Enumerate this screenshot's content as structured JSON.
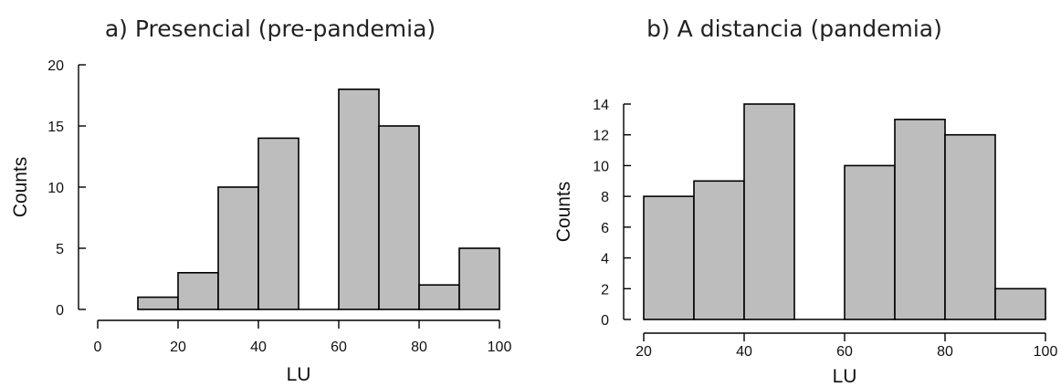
{
  "chart_data": [
    {
      "type": "bar",
      "title": "a) Presencial (pre-pandemia)",
      "xlabel": "LU",
      "ylabel": "Counts",
      "bin_edges": [
        10,
        20,
        30,
        40,
        50,
        60,
        70,
        80,
        90,
        100
      ],
      "values": [
        1,
        3,
        10,
        14,
        0,
        18,
        15,
        2,
        5
      ],
      "xlim": [
        0,
        100
      ],
      "ylim": [
        0,
        20
      ],
      "xticks": [
        0,
        20,
        40,
        60,
        80,
        100
      ],
      "yticks": [
        0,
        5,
        10,
        15,
        20
      ],
      "grid": false,
      "bar_color": "#bdbdbd"
    },
    {
      "type": "bar",
      "title": "b) A distancia (pandemia)",
      "xlabel": "LU",
      "ylabel": "Counts",
      "bin_edges": [
        20,
        30,
        40,
        50,
        60,
        70,
        80,
        90,
        100
      ],
      "values": [
        8,
        9,
        14,
        0,
        10,
        13,
        12,
        2
      ],
      "xlim": [
        20,
        100
      ],
      "ylim": [
        0,
        14
      ],
      "xticks": [
        20,
        40,
        60,
        80,
        100
      ],
      "yticks": [
        0,
        2,
        4,
        6,
        8,
        10,
        12,
        14
      ],
      "grid": false,
      "bar_color": "#bdbdbd"
    }
  ]
}
